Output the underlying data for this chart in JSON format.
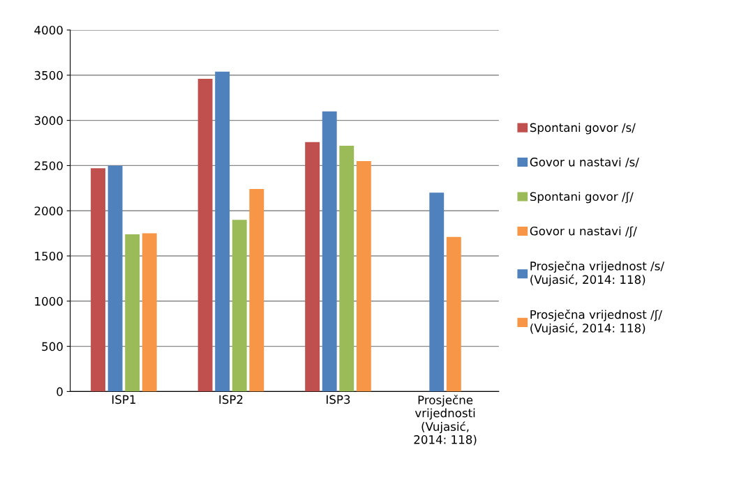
{
  "chart_data": {
    "type": "bar",
    "categories": [
      "ISP1",
      "ISP2",
      "ISP3",
      "Prosječne\nvrijednosti\n(Vujasić,\n2014: 118)"
    ],
    "series": [
      {
        "name": "Spontani govor /s/",
        "color": "#c0504d",
        "values": [
          2470,
          3460,
          2760,
          null
        ]
      },
      {
        "name": "Govor u nastavi /s/",
        "color": "#4f81bd",
        "values": [
          2500,
          3540,
          3100,
          null
        ]
      },
      {
        "name": "Spontani govor /ʃ/",
        "color": "#9bbb59",
        "values": [
          1740,
          1900,
          2720,
          null
        ]
      },
      {
        "name": "Govor u nastavi /ʃ/",
        "color": "#f79646",
        "values": [
          1750,
          2240,
          2550,
          null
        ]
      },
      {
        "name": "Prosječna vrijednost /s/\n(Vujasić, 2014: 118)",
        "color": "#4f81bd",
        "values": [
          null,
          null,
          null,
          2200
        ]
      },
      {
        "name": "Prosječna vrijednost /ʃ/\n(Vujasić, 2014: 118)",
        "color": "#f79646",
        "values": [
          null,
          null,
          null,
          1710
        ]
      }
    ],
    "ylim": [
      0,
      4000
    ],
    "yticks": [
      0,
      500,
      1000,
      1500,
      2000,
      2500,
      3000,
      3500,
      4000
    ],
    "grid": "y",
    "legend": "right"
  }
}
